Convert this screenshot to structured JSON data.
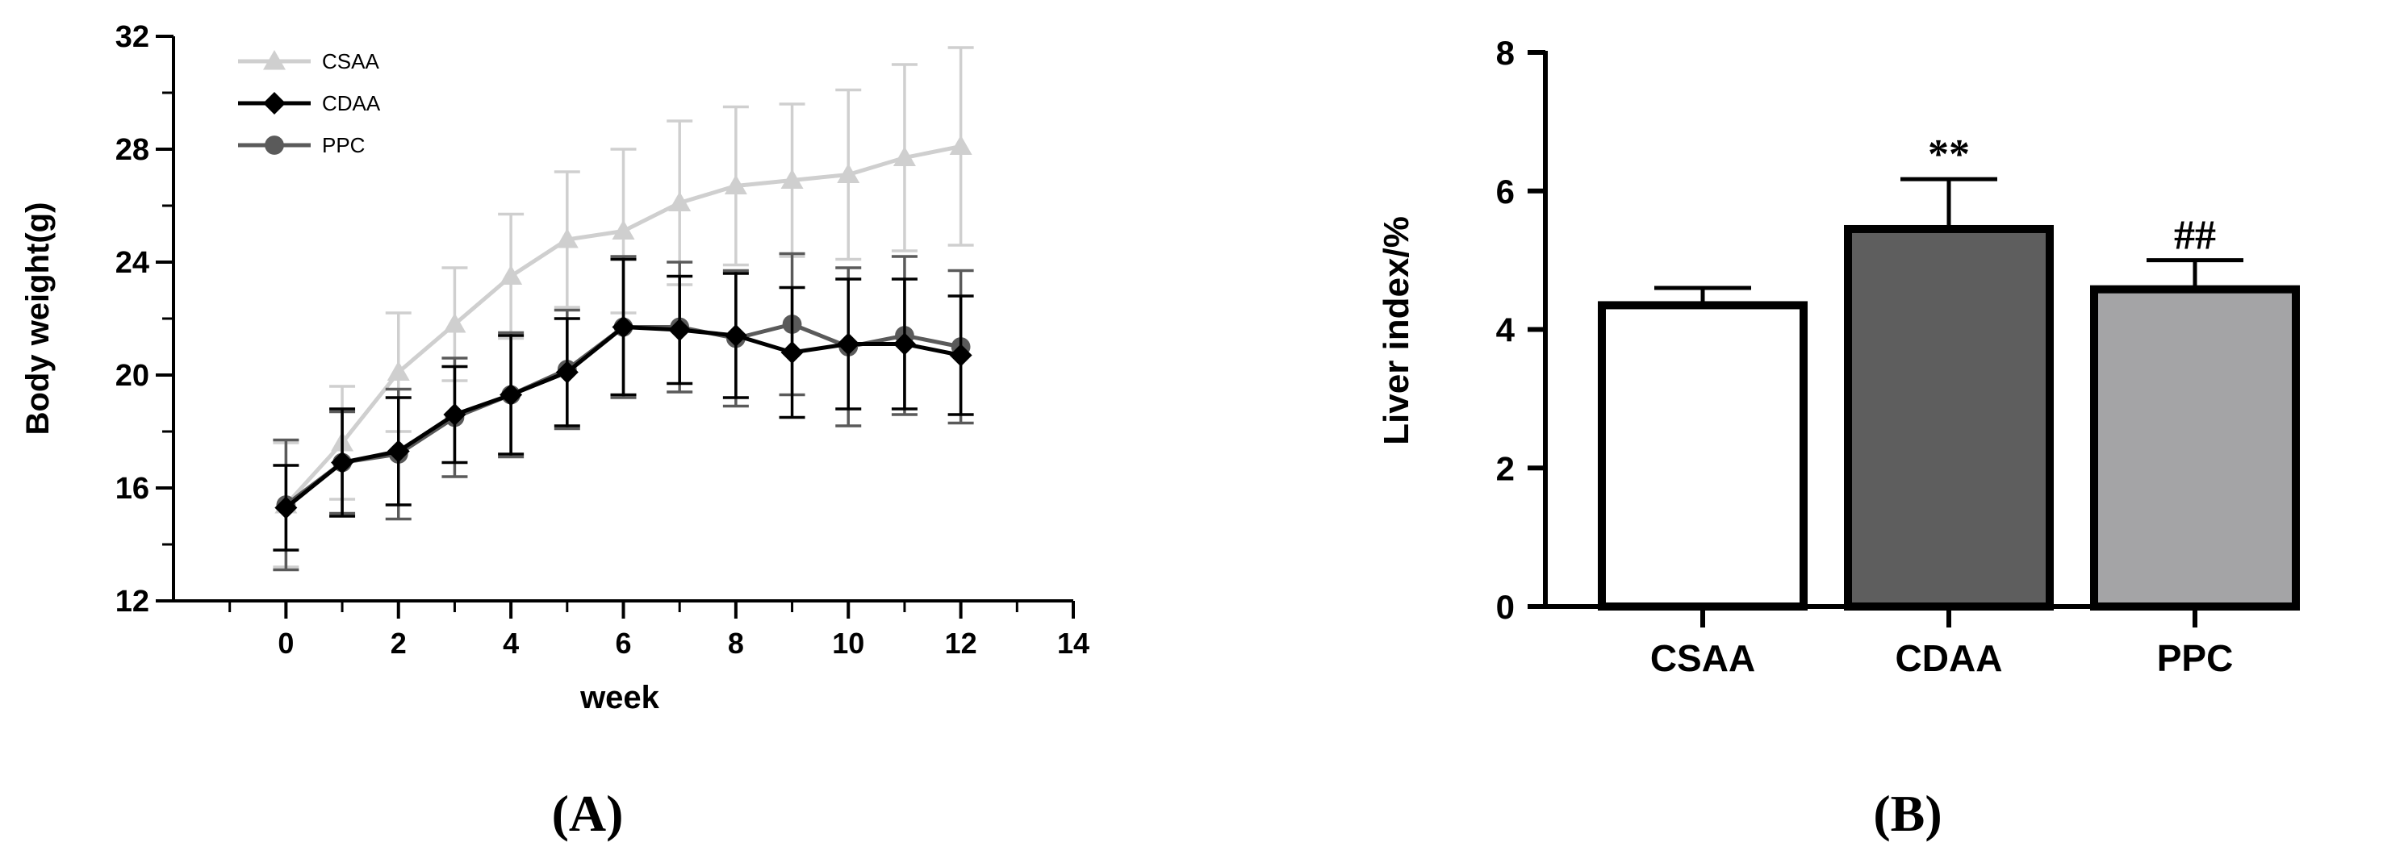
{
  "chart_data": [
    {
      "panel": "(A)",
      "type": "line",
      "xlabel": "week",
      "ylabel": "Body weight(g)",
      "xlim": [
        -2,
        14
      ],
      "ylim": [
        12,
        32
      ],
      "xticks": [
        0,
        2,
        4,
        6,
        8,
        10,
        12,
        14
      ],
      "yticks": [
        12,
        16,
        20,
        24,
        28,
        32
      ],
      "grid": false,
      "legend": "top-left",
      "x": [
        0,
        1,
        2,
        3,
        4,
        5,
        6,
        7,
        8,
        9,
        10,
        11,
        12
      ],
      "series": [
        {
          "name": "CSAA",
          "marker": "triangle",
          "color": "#cfcfcf",
          "values": [
            15.4,
            17.6,
            20.1,
            21.8,
            23.5,
            24.8,
            25.1,
            26.1,
            26.7,
            26.9,
            27.1,
            27.7,
            28.1
          ],
          "errors": [
            2.2,
            2.0,
            2.1,
            2.0,
            2.2,
            2.4,
            2.9,
            2.9,
            2.8,
            2.7,
            3.0,
            3.3,
            3.5
          ]
        },
        {
          "name": "CDAA",
          "marker": "diamond",
          "color": "#000000",
          "values": [
            15.3,
            16.9,
            17.3,
            18.6,
            19.3,
            20.1,
            21.7,
            21.6,
            21.4,
            20.8,
            21.1,
            21.1,
            20.7
          ],
          "errors": [
            1.5,
            1.9,
            1.9,
            1.7,
            2.1,
            1.9,
            2.4,
            1.9,
            2.2,
            2.3,
            2.3,
            2.3,
            2.1
          ]
        },
        {
          "name": "PPC",
          "marker": "circle",
          "color": "#5a5a5a",
          "values": [
            15.4,
            16.9,
            17.2,
            18.5,
            19.3,
            20.2,
            21.7,
            21.7,
            21.3,
            21.8,
            21.0,
            21.4,
            21.0
          ],
          "errors": [
            2.3,
            1.8,
            2.3,
            2.1,
            2.2,
            2.1,
            2.5,
            2.3,
            2.4,
            2.5,
            2.8,
            2.8,
            2.7
          ]
        }
      ]
    },
    {
      "panel": "(B)",
      "type": "bar",
      "ylabel": "Liver index/%",
      "ylim": [
        0,
        8
      ],
      "yticks": [
        0,
        2,
        4,
        6,
        8
      ],
      "grid": false,
      "categories": [
        "CSAA",
        "CDAA",
        "PPC"
      ],
      "values": [
        4.35,
        5.45,
        4.58
      ],
      "errors": [
        0.25,
        0.72,
        0.42
      ],
      "colors": [
        "#ffffff",
        "#5e5e5e",
        "#a4a4a6"
      ],
      "annotations": [
        "",
        "**",
        "##"
      ]
    }
  ]
}
